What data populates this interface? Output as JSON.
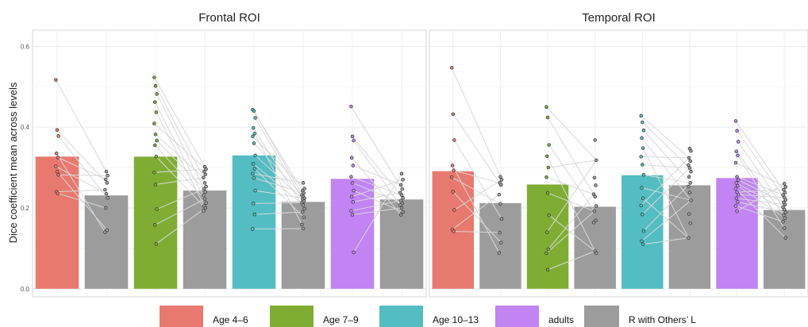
{
  "chart_data": {
    "type": "bar",
    "ylabel": "Dice coefficient mean across levels",
    "ylim": [
      -0.02,
      0.64
    ],
    "yticks": [
      "0.0",
      "0.2",
      "0.4",
      "0.6"
    ],
    "grid": true,
    "legend_position": "bottom",
    "legend": [
      {
        "label": "Age 4–6",
        "color": "#E8796E"
      },
      {
        "label": "Age 7–9",
        "color": "#7FAD34"
      },
      {
        "label": "Age 10–13",
        "color": "#53BDC3"
      },
      {
        "label": "adults",
        "color": "#C184F2"
      },
      {
        "label": "R with Others’ L",
        "color": "#9C9C9C"
      }
    ],
    "panels": [
      {
        "title": "Frontal ROI",
        "groups": [
          {
            "color": "#E8796E",
            "bar": 0.327,
            "other": 0.231,
            "points": [
              0.517,
              0.393,
              0.378,
              0.335,
              0.325,
              0.303,
              0.29,
              0.282,
              0.24,
              0.236
            ],
            "others": [
              0.29,
              0.28,
              0.271,
              0.262,
              0.245,
              0.235,
              0.225,
              0.2,
              0.145,
              0.14
            ]
          },
          {
            "color": "#7FAD34",
            "bar": 0.327,
            "other": 0.243,
            "points": [
              0.523,
              0.502,
              0.482,
              0.462,
              0.437,
              0.409,
              0.382,
              0.367,
              0.355,
              0.327,
              0.288,
              0.258,
              0.197,
              0.158,
              0.111
            ],
            "others": [
              0.302,
              0.296,
              0.29,
              0.283,
              0.275,
              0.262,
              0.253,
              0.247,
              0.24,
              0.231,
              0.222,
              0.212,
              0.205,
              0.2,
              0.193
            ]
          },
          {
            "color": "#53BDC3",
            "bar": 0.33,
            "other": 0.215,
            "points": [
              0.443,
              0.44,
              0.423,
              0.398,
              0.384,
              0.377,
              0.36,
              0.33,
              0.309,
              0.297,
              0.285,
              0.274,
              0.243,
              0.211,
              0.184,
              0.148
            ],
            "others": [
              0.262,
              0.248,
              0.243,
              0.237,
              0.232,
              0.228,
              0.224,
              0.222,
              0.217,
              0.213,
              0.207,
              0.198,
              0.19,
              0.177,
              0.159,
              0.149
            ]
          },
          {
            "color": "#C184F2",
            "bar": 0.272,
            "other": 0.221,
            "points": [
              0.451,
              0.377,
              0.367,
              0.324,
              0.305,
              0.277,
              0.262,
              0.243,
              0.228,
              0.215,
              0.193,
              0.183,
              0.09
            ],
            "others": [
              0.285,
              0.27,
              0.257,
              0.247,
              0.238,
              0.232,
              0.225,
              0.218,
              0.212,
              0.207,
              0.2,
              0.19,
              0.183
            ]
          }
        ]
      },
      {
        "title": "Temporal ROI",
        "groups": [
          {
            "color": "#E8796E",
            "bar": 0.291,
            "other": 0.212,
            "points": [
              0.547,
              0.432,
              0.368,
              0.305,
              0.293,
              0.276,
              0.24,
              0.195,
              0.147,
              0.142
            ],
            "others": [
              0.277,
              0.27,
              0.262,
              0.257,
              0.233,
              0.21,
              0.173,
              0.139,
              0.114,
              0.089
            ]
          },
          {
            "color": "#7FAD34",
            "bar": 0.258,
            "other": 0.203,
            "points": [
              0.45,
              0.424,
              0.356,
              0.328,
              0.3,
              0.276,
              0.237,
              0.182,
              0.14,
              0.098,
              0.088,
              0.047
            ],
            "others": [
              0.368,
              0.318,
              0.275,
              0.256,
              0.234,
              0.228,
              0.205,
              0.192,
              0.169,
              0.164,
              0.093,
              0.088
            ]
          },
          {
            "color": "#53BDC3",
            "bar": 0.281,
            "other": 0.256,
            "points": [
              0.428,
              0.412,
              0.392,
              0.373,
              0.348,
              0.327,
              0.307,
              0.282,
              0.25,
              0.224,
              0.206,
              0.184,
              0.143,
              0.118,
              0.11
            ],
            "others": [
              0.347,
              0.341,
              0.324,
              0.316,
              0.306,
              0.299,
              0.29,
              0.277,
              0.262,
              0.253,
              0.238,
              0.219,
              0.185,
              0.162,
              0.126
            ]
          },
          {
            "color": "#C184F2",
            "bar": 0.274,
            "other": 0.195,
            "points": [
              0.415,
              0.391,
              0.364,
              0.34,
              0.33,
              0.312,
              0.277,
              0.269,
              0.262,
              0.255,
              0.248,
              0.239,
              0.233,
              0.224,
              0.215,
              0.205,
              0.192
            ],
            "others": [
              0.26,
              0.252,
              0.245,
              0.238,
              0.232,
              0.226,
              0.22,
              0.214,
              0.208,
              0.202,
              0.196,
              0.189,
              0.182,
              0.175,
              0.166,
              0.15,
              0.126
            ]
          }
        ]
      }
    ]
  }
}
